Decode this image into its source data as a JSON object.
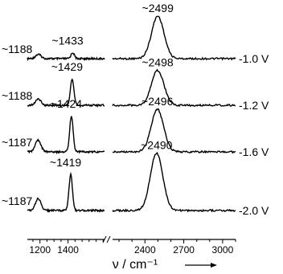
{
  "chart_data": {
    "type": "line",
    "title": "",
    "xlabel": "ν / cm⁻¹",
    "ylabel": "",
    "x_axis_break_between": [
      1660,
      2150
    ],
    "xlim_segments": [
      [
        1110,
        1660
      ],
      [
        2150,
        3100
      ]
    ],
    "x_ticks": [
      1200,
      1400,
      2400,
      2700,
      3000
    ],
    "x_tick_labels": [
      "1200",
      "1400",
      "2400",
      "2700",
      "3000"
    ],
    "series": [
      {
        "name": "-1.0 V",
        "peaks": [
          {
            "x": 1188,
            "rel_height": 0.1,
            "label": "~1188"
          },
          {
            "x": 1433,
            "rel_height": 0.14,
            "label": "~1433"
          },
          {
            "x": 2499,
            "rel_height": 1.0,
            "label": "~2499"
          }
        ]
      },
      {
        "name": "-1.2 V",
        "peaks": [
          {
            "x": 1188,
            "rel_height": 0.15,
            "label": "~1188"
          },
          {
            "x": 1429,
            "rel_height": 0.62,
            "label": "~1429"
          },
          {
            "x": 2498,
            "rel_height": 0.82,
            "label": "~2498"
          }
        ]
      },
      {
        "name": "-1.6 V",
        "peaks": [
          {
            "x": 1187,
            "rel_height": 0.28,
            "label": "~1187"
          },
          {
            "x": 1424,
            "rel_height": 0.85,
            "label": "~1424"
          },
          {
            "x": 2496,
            "rel_height": 1.0,
            "label": "~2496"
          }
        ]
      },
      {
        "name": "-2.0 V",
        "peaks": [
          {
            "x": 1187,
            "rel_height": 0.28,
            "label": "~1187"
          },
          {
            "x": 1419,
            "rel_height": 0.85,
            "label": "~1419"
          },
          {
            "x": 2490,
            "rel_height": 1.35,
            "label": "~2490"
          }
        ]
      }
    ]
  }
}
